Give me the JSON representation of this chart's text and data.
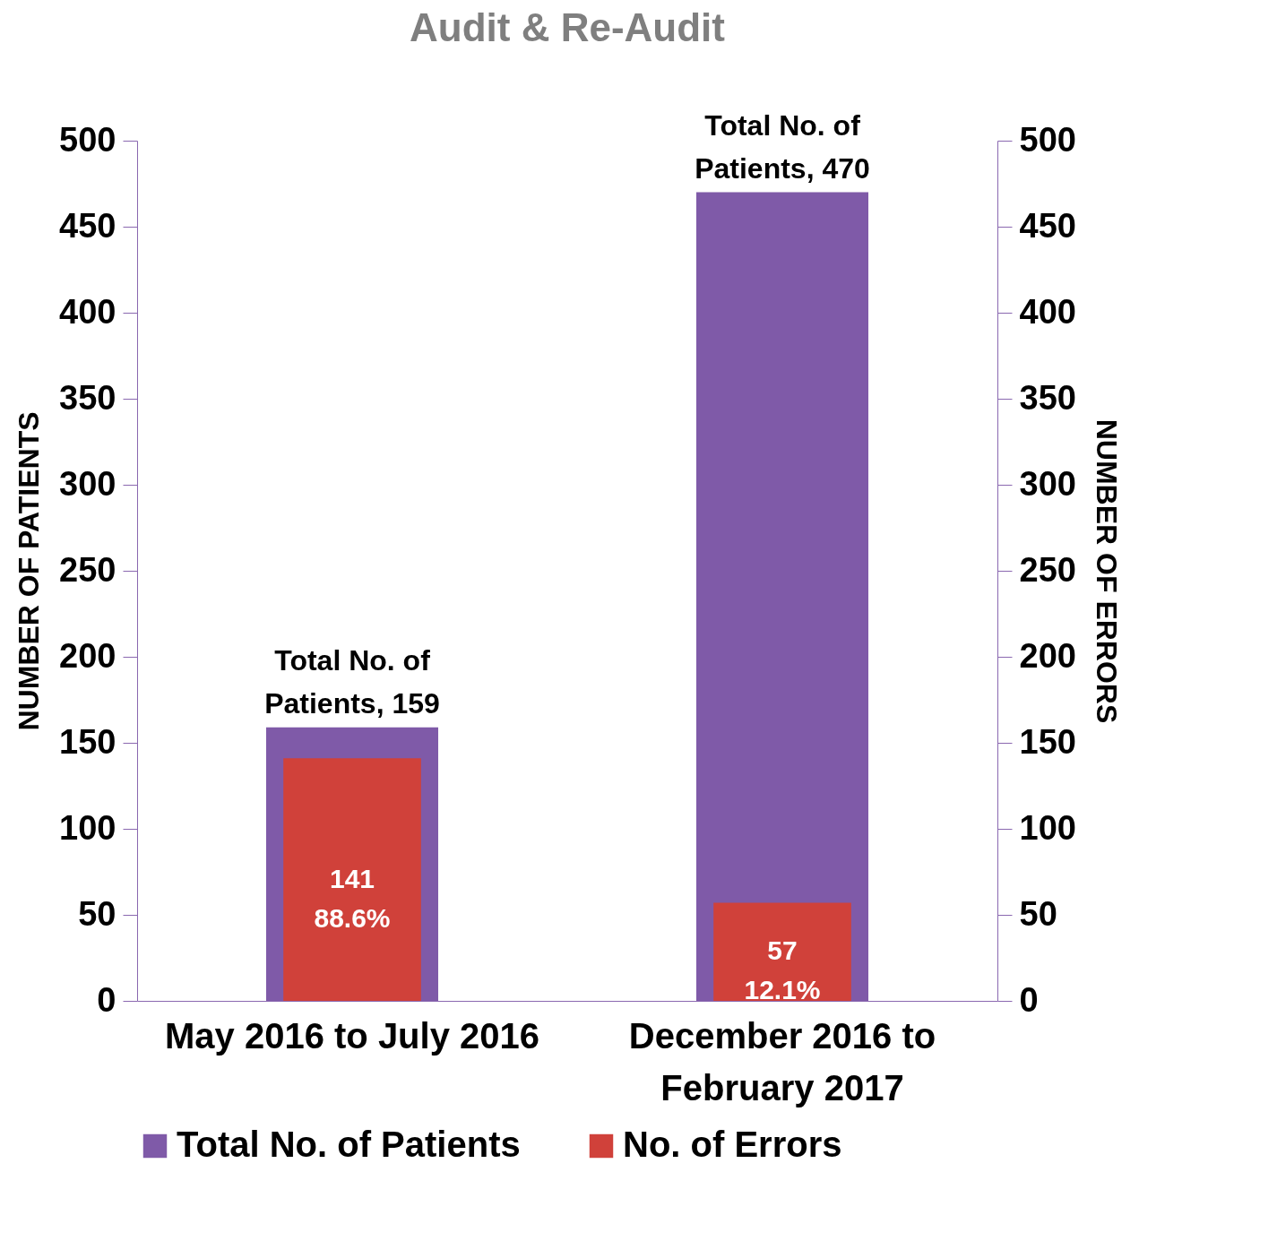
{
  "chart_data": {
    "type": "bar",
    "title": "Audit & Re-Audit",
    "categories": [
      "May 2016 to July 2016",
      "December 2016 to February 2017"
    ],
    "ylabel": "NUMBER OF PATIENTS",
    "y2label": "NUMBER OF ERRORS",
    "ylim": [
      0,
      500
    ],
    "yticks": [
      0,
      50,
      100,
      150,
      200,
      250,
      300,
      350,
      400,
      450,
      500
    ],
    "y2lim": [
      0,
      500
    ],
    "y2ticks": [
      0,
      50,
      100,
      150,
      200,
      250,
      300,
      350,
      400,
      450,
      500
    ],
    "series": [
      {
        "name": "Total No. of Patients",
        "color": "#7f5aa8",
        "values": [
          159,
          470
        ],
        "value_labels": [
          "Total No. of\nPatients, 159",
          "Total No. of\nPatients, 470"
        ]
      },
      {
        "name": "No. of Errors",
        "color": "#d0413a",
        "axis": "y2",
        "values": [
          141,
          57
        ],
        "value_labels": [
          "141\n88.6%",
          "57\n12.1%"
        ]
      }
    ],
    "grid": false,
    "legend": "bottom"
  }
}
